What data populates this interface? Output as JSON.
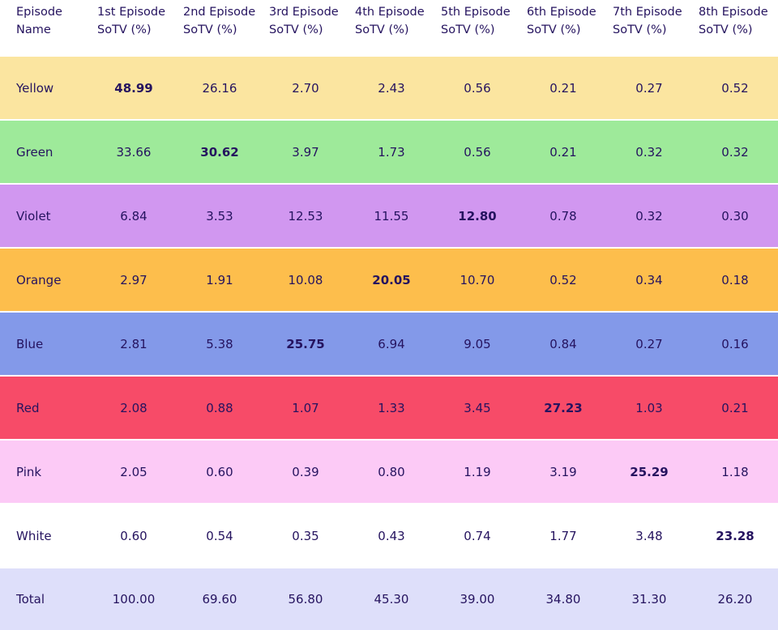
{
  "chart_data": {
    "type": "table",
    "header": {
      "name_col": [
        "Episode",
        "Name"
      ],
      "columns": [
        [
          "1st Episode",
          "SoTV (%)"
        ],
        [
          "2nd Episode",
          "SoTV (%)"
        ],
        [
          "3rd Episode",
          "SoTV (%)"
        ],
        [
          "4th Episode",
          "SoTV (%)"
        ],
        [
          "5th Episode",
          "SoTV (%)"
        ],
        [
          "6th Episode",
          "SoTV (%)"
        ],
        [
          "7th Episode",
          "SoTV (%)"
        ],
        [
          "8th Episode",
          "SoTV (%)"
        ]
      ]
    },
    "rows": [
      {
        "name": "Yellow",
        "color": "#fbe5a0",
        "values": [
          "48.99",
          "26.16",
          "2.70",
          "2.43",
          "0.56",
          "0.21",
          "0.27",
          "0.52"
        ],
        "bold_index": 0
      },
      {
        "name": "Green",
        "color": "#9eea9a",
        "values": [
          "33.66",
          "30.62",
          "3.97",
          "1.73",
          "0.56",
          "0.21",
          "0.32",
          "0.32"
        ],
        "bold_index": 1
      },
      {
        "name": "Violet",
        "color": "#d197f0",
        "values": [
          "6.84",
          "3.53",
          "12.53",
          "11.55",
          "12.80",
          "0.78",
          "0.32",
          "0.30"
        ],
        "bold_index": 4
      },
      {
        "name": "Orange",
        "color": "#fdbe4c",
        "values": [
          "2.97",
          "1.91",
          "10.08",
          "20.05",
          "10.70",
          "0.52",
          "0.34",
          "0.18"
        ],
        "bold_index": 3
      },
      {
        "name": "Blue",
        "color": "#8399e9",
        "values": [
          "2.81",
          "5.38",
          "25.75",
          "6.94",
          "9.05",
          "0.84",
          "0.27",
          "0.16"
        ],
        "bold_index": 2
      },
      {
        "name": "Red",
        "color": "#f74b68",
        "values": [
          "2.08",
          "0.88",
          "1.07",
          "1.33",
          "3.45",
          "27.23",
          "1.03",
          "0.21"
        ],
        "bold_index": 5
      },
      {
        "name": "Pink",
        "color": "#fccaf6",
        "values": [
          "2.05",
          "0.60",
          "0.39",
          "0.80",
          "1.19",
          "3.19",
          "25.29",
          "1.18"
        ],
        "bold_index": 6
      },
      {
        "name": "White",
        "color": "#ffffff",
        "values": [
          "0.60",
          "0.54",
          "0.35",
          "0.43",
          "0.74",
          "1.77",
          "3.48",
          "23.28"
        ],
        "bold_index": 7
      }
    ],
    "total": {
      "name": "Total",
      "color": "#dedffa",
      "values": [
        "100.00",
        "69.60",
        "56.80",
        "45.30",
        "39.00",
        "34.80",
        "31.30",
        "26.20"
      ]
    }
  }
}
